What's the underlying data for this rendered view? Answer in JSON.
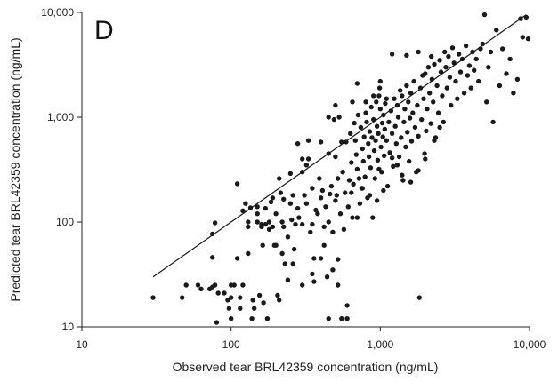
{
  "chart_data": {
    "type": "scatter",
    "panel_label": "D",
    "xlabel": "Observed tear BRL42359 concentration (ng/mL)",
    "ylabel": "Predicted tear BRL42359 concentration (ng/mL)",
    "xscale": "log",
    "yscale": "log",
    "xlim": [
      10,
      10000
    ],
    "ylim": [
      10,
      10000
    ],
    "xticks": [
      {
        "value": 10,
        "label": "10"
      },
      {
        "value": 100,
        "label": "100"
      },
      {
        "value": 1000,
        "label": "1,000"
      },
      {
        "value": 10000,
        "label": "10,000"
      }
    ],
    "yticks": [
      {
        "value": 10,
        "label": "10"
      },
      {
        "value": 100,
        "label": "100"
      },
      {
        "value": 1000,
        "label": "1,000"
      },
      {
        "value": 10000,
        "label": "10,000"
      }
    ],
    "grid": false,
    "identity_line": {
      "x": [
        30,
        9500
      ],
      "y": [
        30,
        9500
      ]
    },
    "colors": {
      "points": "#1a1a1a",
      "line": "#1a1a1a",
      "axes": "#222222"
    },
    "points": [
      [
        30,
        19
      ],
      [
        47,
        19
      ],
      [
        50,
        25
      ],
      [
        60,
        25
      ],
      [
        63,
        23
      ],
      [
        72,
        23
      ],
      [
        75,
        24
      ],
      [
        78,
        25
      ],
      [
        80,
        11
      ],
      [
        82,
        21
      ],
      [
        75,
        77
      ],
      [
        78,
        98
      ],
      [
        75,
        46
      ],
      [
        90,
        21
      ],
      [
        95,
        18
      ],
      [
        97,
        15
      ],
      [
        100,
        19
      ],
      [
        100,
        12
      ],
      [
        100,
        25
      ],
      [
        105,
        25
      ],
      [
        110,
        232
      ],
      [
        115,
        19
      ],
      [
        115,
        15
      ],
      [
        120,
        25
      ],
      [
        120,
        128
      ],
      [
        125,
        150
      ],
      [
        130,
        90
      ],
      [
        130,
        100
      ],
      [
        135,
        137
      ],
      [
        138,
        12
      ],
      [
        140,
        18
      ],
      [
        143,
        15
      ],
      [
        150,
        120
      ],
      [
        150,
        140
      ],
      [
        155,
        20
      ],
      [
        160,
        95
      ],
      [
        163,
        60
      ],
      [
        165,
        17
      ],
      [
        170,
        95
      ],
      [
        170,
        135
      ],
      [
        175,
        12
      ],
      [
        180,
        100
      ],
      [
        185,
        155
      ],
      [
        190,
        90
      ],
      [
        195,
        60
      ],
      [
        200,
        60
      ],
      [
        200,
        120
      ],
      [
        205,
        20
      ],
      [
        210,
        18
      ],
      [
        215,
        190
      ],
      [
        220,
        100
      ],
      [
        225,
        90
      ],
      [
        225,
        165
      ],
      [
        230,
        40
      ],
      [
        240,
        28
      ],
      [
        240,
        72
      ],
      [
        250,
        150
      ],
      [
        255,
        105
      ],
      [
        260,
        180
      ],
      [
        265,
        55
      ],
      [
        270,
        95
      ],
      [
        280,
        135
      ],
      [
        285,
        110
      ],
      [
        300,
        95
      ],
      [
        300,
        300
      ],
      [
        300,
        400
      ],
      [
        310,
        180
      ],
      [
        320,
        150
      ],
      [
        320,
        350
      ],
      [
        330,
        400
      ],
      [
        340,
        80
      ],
      [
        350,
        210
      ],
      [
        350,
        95
      ],
      [
        360,
        45
      ],
      [
        360,
        27
      ],
      [
        370,
        130
      ],
      [
        380,
        120
      ],
      [
        390,
        260
      ],
      [
        400,
        580
      ],
      [
        400,
        170
      ],
      [
        410,
        200
      ],
      [
        420,
        90
      ],
      [
        420,
        60
      ],
      [
        430,
        140
      ],
      [
        440,
        30
      ],
      [
        450,
        450
      ],
      [
        450,
        100
      ],
      [
        460,
        185
      ],
      [
        470,
        220
      ],
      [
        480,
        80
      ],
      [
        490,
        950
      ],
      [
        500,
        420
      ],
      [
        500,
        160
      ],
      [
        510,
        180
      ],
      [
        520,
        44
      ],
      [
        520,
        260
      ],
      [
        530,
        1000
      ],
      [
        540,
        120
      ],
      [
        550,
        580
      ],
      [
        560,
        300
      ],
      [
        570,
        85
      ],
      [
        580,
        190
      ],
      [
        590,
        580
      ],
      [
        600,
        16
      ],
      [
        600,
        12
      ],
      [
        610,
        140
      ],
      [
        620,
        250
      ],
      [
        630,
        700
      ],
      [
        640,
        370
      ],
      [
        650,
        110
      ],
      [
        660,
        230
      ],
      [
        670,
        880
      ],
      [
        680,
        600
      ],
      [
        690,
        440
      ],
      [
        700,
        320
      ],
      [
        710,
        1050
      ],
      [
        720,
        260
      ],
      [
        730,
        150
      ],
      [
        740,
        800
      ],
      [
        750,
        210
      ],
      [
        760,
        500
      ],
      [
        770,
        380
      ],
      [
        780,
        650
      ],
      [
        790,
        270
      ],
      [
        800,
        1100
      ],
      [
        810,
        900
      ],
      [
        820,
        170
      ],
      [
        830,
        560
      ],
      [
        840,
        420
      ],
      [
        850,
        730
      ],
      [
        860,
        330
      ],
      [
        870,
        1250
      ],
      [
        880,
        640
      ],
      [
        890,
        110
      ],
      [
        900,
        950
      ],
      [
        910,
        480
      ],
      [
        920,
        260
      ],
      [
        930,
        600
      ],
      [
        940,
        1400
      ],
      [
        950,
        820
      ],
      [
        960,
        390
      ],
      [
        970,
        700
      ],
      [
        980,
        1600
      ],
      [
        990,
        1900
      ],
      [
        1000,
        1200
      ],
      [
        1010,
        520
      ],
      [
        1020,
        300
      ],
      [
        1030,
        880
      ],
      [
        1040,
        650
      ],
      [
        1050,
        1050
      ],
      [
        1060,
        430
      ],
      [
        1070,
        770
      ],
      [
        1080,
        1350
      ],
      [
        1100,
        600
      ],
      [
        1120,
        220
      ],
      [
        1140,
        900
      ],
      [
        1160,
        460
      ],
      [
        1180,
        1150
      ],
      [
        1200,
        700
      ],
      [
        1220,
        340
      ],
      [
        1240,
        1500
      ],
      [
        1260,
        820
      ],
      [
        1280,
        560
      ],
      [
        1300,
        1300
      ],
      [
        1320,
        1000
      ],
      [
        1340,
        420
      ],
      [
        1360,
        1800
      ],
      [
        1380,
        640
      ],
      [
        1400,
        1600
      ],
      [
        1420,
        250
      ],
      [
        1440,
        900
      ],
      [
        1460,
        1200
      ],
      [
        1480,
        520
      ],
      [
        1500,
        2000
      ],
      [
        1520,
        720
      ],
      [
        1540,
        1400
      ],
      [
        1560,
        380
      ],
      [
        1580,
        980
      ],
      [
        1600,
        1700
      ],
      [
        1620,
        590
      ],
      [
        1650,
        1100
      ],
      [
        1680,
        2200
      ],
      [
        1710,
        800
      ],
      [
        1740,
        300
      ],
      [
        1770,
        1300
      ],
      [
        1800,
        660
      ],
      [
        1830,
        19
      ],
      [
        1860,
        1900
      ],
      [
        1890,
        950
      ],
      [
        1920,
        2500
      ],
      [
        1950,
        1500
      ],
      [
        1980,
        450
      ],
      [
        2000,
        2600
      ],
      [
        2030,
        740
      ],
      [
        2060,
        1200
      ],
      [
        2100,
        3000
      ],
      [
        2140,
        1700
      ],
      [
        2180,
        870
      ],
      [
        2220,
        2300
      ],
      [
        2260,
        1400
      ],
      [
        2300,
        3200
      ],
      [
        2350,
        640
      ],
      [
        2400,
        2000
      ],
      [
        2450,
        1100
      ],
      [
        2500,
        3500
      ],
      [
        2550,
        2700
      ],
      [
        2600,
        1600
      ],
      [
        2650,
        900
      ],
      [
        2700,
        4200
      ],
      [
        2750,
        3000
      ],
      [
        2800,
        1900
      ],
      [
        2860,
        3800
      ],
      [
        2920,
        2400
      ],
      [
        2980,
        1300
      ],
      [
        3050,
        4600
      ],
      [
        3120,
        3300
      ],
      [
        3200,
        2200
      ],
      [
        3280,
        1500
      ],
      [
        3360,
        4000
      ],
      [
        3450,
        2700
      ],
      [
        3550,
        3600
      ],
      [
        3650,
        1700
      ],
      [
        3750,
        4800
      ],
      [
        3850,
        2500
      ],
      [
        3950,
        3100
      ],
      [
        4050,
        1900
      ],
      [
        4150,
        4200
      ],
      [
        4250,
        2800
      ],
      [
        4400,
        3600
      ],
      [
        4550,
        2200
      ],
      [
        4700,
        4500
      ],
      [
        4850,
        5000
      ],
      [
        5000,
        9500
      ],
      [
        5150,
        1400
      ],
      [
        5300,
        3000
      ],
      [
        5500,
        4200
      ],
      [
        5700,
        900
      ],
      [
        6000,
        6800
      ],
      [
        6300,
        2000
      ],
      [
        6600,
        4500
      ],
      [
        7000,
        2600
      ],
      [
        7400,
        3600
      ],
      [
        7800,
        1700
      ],
      [
        8300,
        2300
      ],
      [
        8700,
        8700
      ],
      [
        9000,
        5800
      ],
      [
        9500,
        9000
      ],
      [
        9800,
        5600
      ],
      [
        1200,
        4000
      ],
      [
        1500,
        3900
      ],
      [
        1800,
        4200
      ],
      [
        2200,
        3800
      ],
      [
        1000,
        2200
      ],
      [
        800,
        1400
      ],
      [
        650,
        1400
      ],
      [
        500,
        1300
      ],
      [
        450,
        1000
      ],
      [
        700,
        2100
      ],
      [
        900,
        1600
      ],
      [
        1100,
        1500
      ],
      [
        330,
        600
      ],
      [
        280,
        560
      ],
      [
        250,
        290
      ],
      [
        190,
        170
      ],
      [
        210,
        260
      ],
      [
        150,
        100
      ],
      [
        130,
        50
      ],
      [
        110,
        45
      ],
      [
        160,
        90
      ],
      [
        180,
        85
      ],
      [
        220,
        50
      ],
      [
        260,
        40
      ],
      [
        300,
        25
      ],
      [
        350,
        32
      ],
      [
        400,
        45
      ],
      [
        480,
        35
      ],
      [
        520,
        25
      ],
      [
        550,
        12
      ],
      [
        450,
        12
      ],
      [
        700,
        110
      ],
      [
        850,
        180
      ],
      [
        950,
        160
      ],
      [
        1050,
        200
      ],
      [
        1300,
        350
      ],
      [
        1600,
        240
      ],
      [
        2000,
        400
      ],
      [
        2300,
        600
      ],
      [
        2500,
        800
      ],
      [
        1800,
        310
      ],
      [
        1400,
        280
      ],
      [
        1200,
        410
      ],
      [
        980,
        320
      ],
      [
        760,
        210
      ],
      [
        640,
        190
      ]
    ]
  }
}
